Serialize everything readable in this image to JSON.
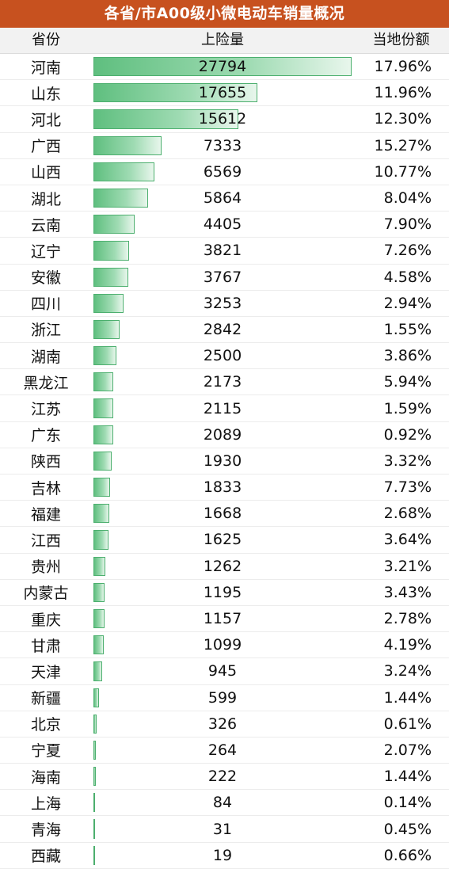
{
  "title": "各省/市A00级小微电动车销量概况",
  "headers": {
    "province": "省份",
    "insurance": "上险量",
    "share": "当地份额"
  },
  "max_value": 27794,
  "bar_colors": {
    "fill_start": "#5fbf7f",
    "fill_end": "#e8f6ec",
    "border": "#4caf6e"
  },
  "rows": [
    {
      "province": "河南",
      "value": 27794,
      "share": "17.96%"
    },
    {
      "province": "山东",
      "value": 17655,
      "share": "11.96%"
    },
    {
      "province": "河北",
      "value": 15612,
      "share": "12.30%"
    },
    {
      "province": "广西",
      "value": 7333,
      "share": "15.27%"
    },
    {
      "province": "山西",
      "value": 6569,
      "share": "10.77%"
    },
    {
      "province": "湖北",
      "value": 5864,
      "share": "8.04%"
    },
    {
      "province": "云南",
      "value": 4405,
      "share": "7.90%"
    },
    {
      "province": "辽宁",
      "value": 3821,
      "share": "7.26%"
    },
    {
      "province": "安徽",
      "value": 3767,
      "share": "4.58%"
    },
    {
      "province": "四川",
      "value": 3253,
      "share": "2.94%"
    },
    {
      "province": "浙江",
      "value": 2842,
      "share": "1.55%"
    },
    {
      "province": "湖南",
      "value": 2500,
      "share": "3.86%"
    },
    {
      "province": "黑龙江",
      "value": 2173,
      "share": "5.94%"
    },
    {
      "province": "江苏",
      "value": 2115,
      "share": "1.59%"
    },
    {
      "province": "广东",
      "value": 2089,
      "share": "0.92%"
    },
    {
      "province": "陕西",
      "value": 1930,
      "share": "3.32%"
    },
    {
      "province": "吉林",
      "value": 1833,
      "share": "7.73%"
    },
    {
      "province": "福建",
      "value": 1668,
      "share": "2.68%"
    },
    {
      "province": "江西",
      "value": 1625,
      "share": "3.64%"
    },
    {
      "province": "贵州",
      "value": 1262,
      "share": "3.21%"
    },
    {
      "province": "内蒙古",
      "value": 1195,
      "share": "3.43%"
    },
    {
      "province": "重庆",
      "value": 1157,
      "share": "2.78%"
    },
    {
      "province": "甘肃",
      "value": 1099,
      "share": "4.19%"
    },
    {
      "province": "天津",
      "value": 945,
      "share": "3.24%"
    },
    {
      "province": "新疆",
      "value": 599,
      "share": "1.44%"
    },
    {
      "province": "北京",
      "value": 326,
      "share": "0.61%"
    },
    {
      "province": "宁夏",
      "value": 264,
      "share": "2.07%"
    },
    {
      "province": "海南",
      "value": 222,
      "share": "1.44%"
    },
    {
      "province": "上海",
      "value": 84,
      "share": "0.14%"
    },
    {
      "province": "青海",
      "value": 31,
      "share": "0.45%"
    },
    {
      "province": "西藏",
      "value": 19,
      "share": "0.66%"
    }
  ]
}
